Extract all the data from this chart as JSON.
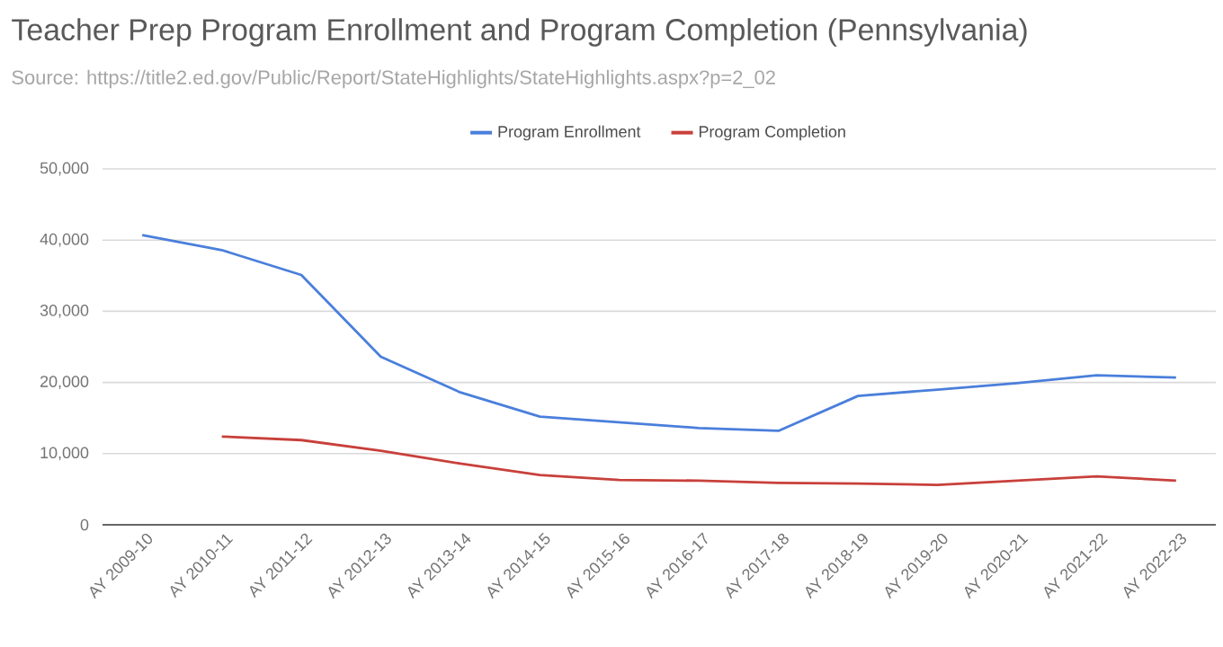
{
  "chart_data": {
    "type": "line",
    "title": "Teacher Prep Program Enrollment and Program Completion (Pennsylvania)",
    "subtitle": "Source: https://title2.ed.gov/Public/Report/StateHighlights/StateHighlights.aspx?p=2_02",
    "categories": [
      "AY 2009-10",
      "AY 2010-11",
      "AY 2011-12",
      "AY 2012-13",
      "AY 2013-14",
      "AY 2014-15",
      "AY 2015-16",
      "AY 2016-17",
      "AY 2017-18",
      "AY 2018-19",
      "AY 2019-20",
      "AY 2020-21",
      "AY 2021-22",
      "AY 2022-23"
    ],
    "series": [
      {
        "name": "Program Enrollment",
        "color": "#4a7fdb",
        "values": [
          40700,
          38600,
          35100,
          23600,
          18600,
          15200,
          14400,
          13600,
          13200,
          18100,
          19000,
          19900,
          21000,
          20700
        ]
      },
      {
        "name": "Program Completion",
        "color": "#c8403b",
        "values": [
          null,
          12400,
          11900,
          10400,
          8600,
          7000,
          6300,
          6200,
          5900,
          5800,
          5600,
          6200,
          6800,
          6200
        ]
      }
    ],
    "ylim": [
      0,
      50000
    ],
    "yticks": [
      {
        "value": 0,
        "label": "0"
      },
      {
        "value": 10000,
        "label": "10,000"
      },
      {
        "value": 20000,
        "label": "20,000"
      },
      {
        "value": 30000,
        "label": "30,000"
      },
      {
        "value": 40000,
        "label": "40,000"
      },
      {
        "value": 50000,
        "label": "50,000"
      }
    ],
    "grid": "y",
    "legend": "top",
    "marker": "none",
    "line_style": "solid"
  }
}
